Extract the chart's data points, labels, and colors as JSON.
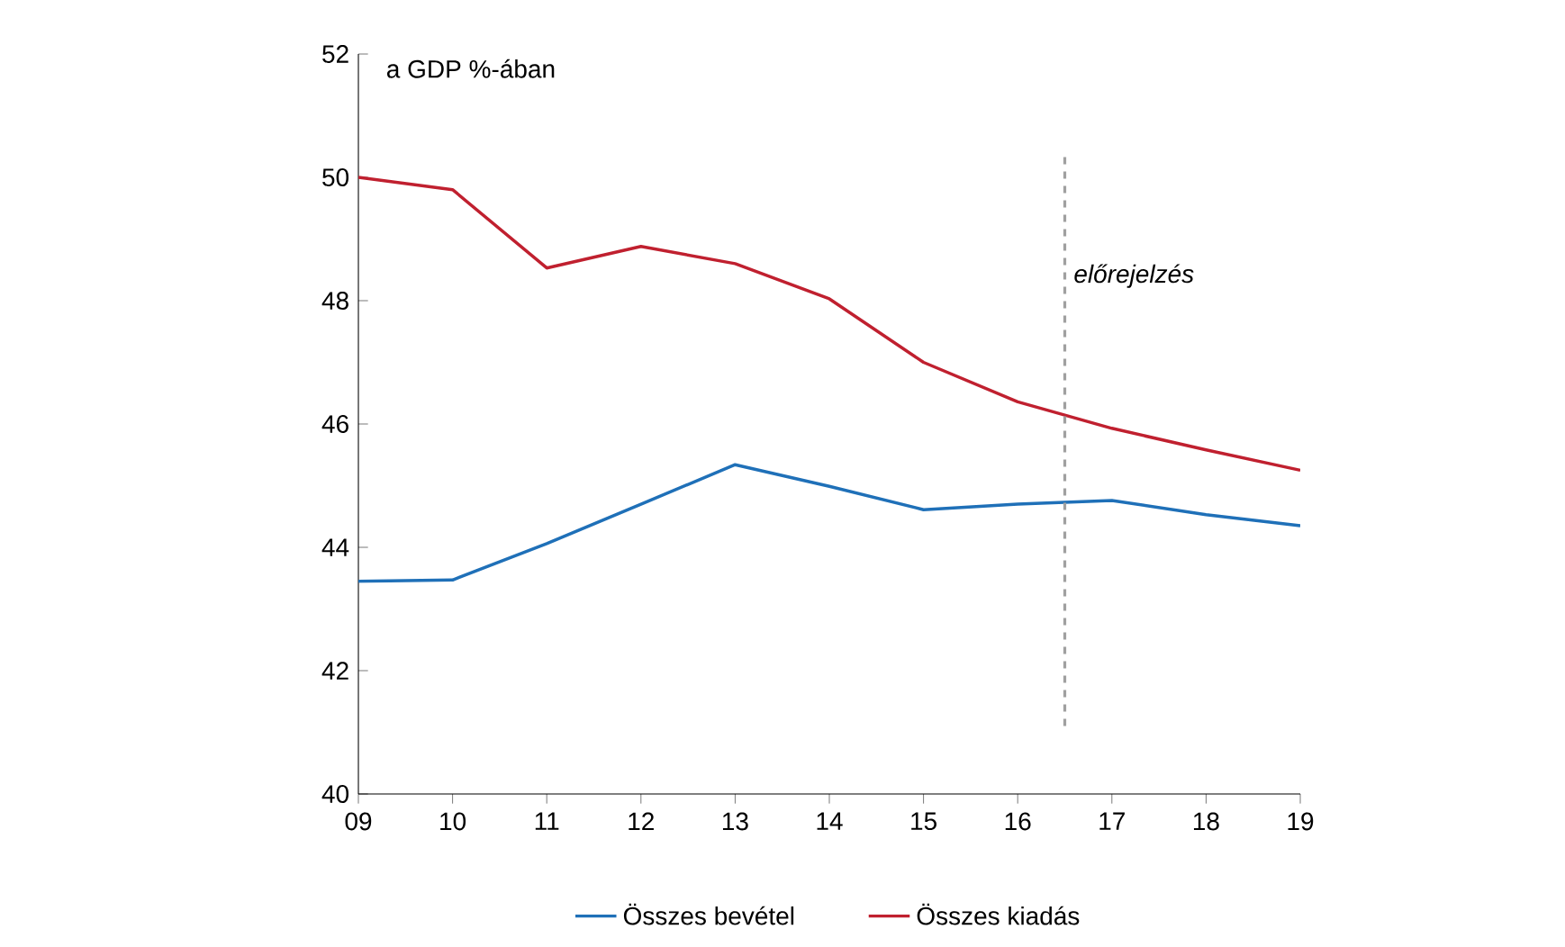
{
  "chart_data": {
    "type": "line",
    "ylabel": "a GDP %-ában",
    "x": [
      9,
      10,
      11,
      12,
      13,
      14,
      15,
      16,
      17,
      18,
      19
    ],
    "xlim": [
      9,
      19
    ],
    "xticks": [
      {
        "value": 9,
        "label": "09"
      },
      {
        "value": 10,
        "label": "10"
      },
      {
        "value": 11,
        "label": "11"
      },
      {
        "value": 12,
        "label": "12"
      },
      {
        "value": 13,
        "label": "13"
      },
      {
        "value": 14,
        "label": "14"
      },
      {
        "value": 15,
        "label": "15"
      },
      {
        "value": 16,
        "label": "16"
      },
      {
        "value": 17,
        "label": "17"
      },
      {
        "value": 18,
        "label": "18"
      },
      {
        "value": 19,
        "label": "19"
      }
    ],
    "ylim": [
      40,
      52
    ],
    "yticks": [
      40,
      42,
      44,
      46,
      48,
      50,
      52
    ],
    "series": [
      {
        "name": "Összes bevétel",
        "color": "#1f70b8",
        "values": [
          43.45,
          43.47,
          44.06,
          44.7,
          45.34,
          44.99,
          44.61,
          44.7,
          44.76,
          44.53,
          44.35
        ]
      },
      {
        "name": "Összes kiadás",
        "color": "#c0202f",
        "values": [
          50.0,
          49.8,
          48.53,
          48.88,
          48.6,
          48.03,
          47.0,
          46.36,
          45.93,
          45.58,
          45.25
        ]
      }
    ],
    "ref_lines": [
      {
        "axis": "x",
        "value": 16.5,
        "label": "előrejelzés",
        "color": "#a0a0a0",
        "line_style": "dashed"
      }
    ],
    "legend": "bottom",
    "marker": "none",
    "line_style": "solid"
  }
}
